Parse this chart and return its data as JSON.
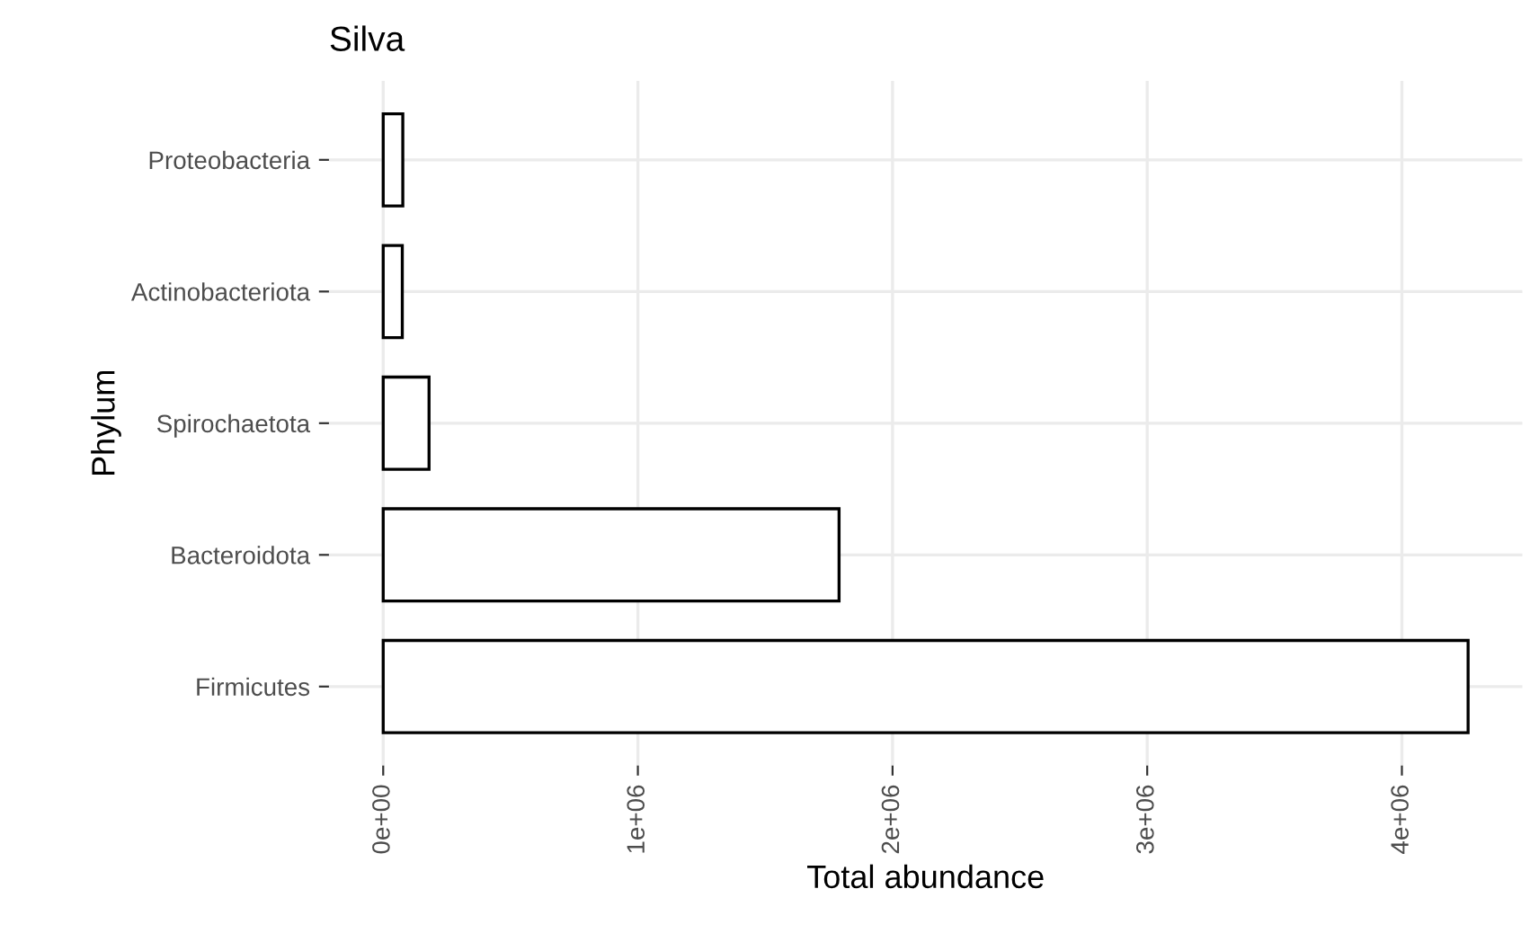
{
  "chart_data": {
    "type": "bar",
    "orientation": "horizontal",
    "title": "Silva",
    "xlabel": "Total abundance",
    "ylabel": "Phylum",
    "categories": [
      "Proteobacteria",
      "Actinobacteriota",
      "Spirochaetota",
      "Bacteroidota",
      "Firmicutes"
    ],
    "values": [
      77000,
      75000,
      180000,
      1790000,
      4260000
    ],
    "color": "#ffffff",
    "xlim": [
      -213000,
      4473000
    ],
    "xticks": [
      {
        "value": 0,
        "label": "0e+00"
      },
      {
        "value": 1000000,
        "label": "1e+06"
      },
      {
        "value": 2000000,
        "label": "2e+06"
      },
      {
        "value": 3000000,
        "label": "3e+06"
      },
      {
        "value": 4000000,
        "label": "4e+06"
      }
    ],
    "grid": true
  }
}
